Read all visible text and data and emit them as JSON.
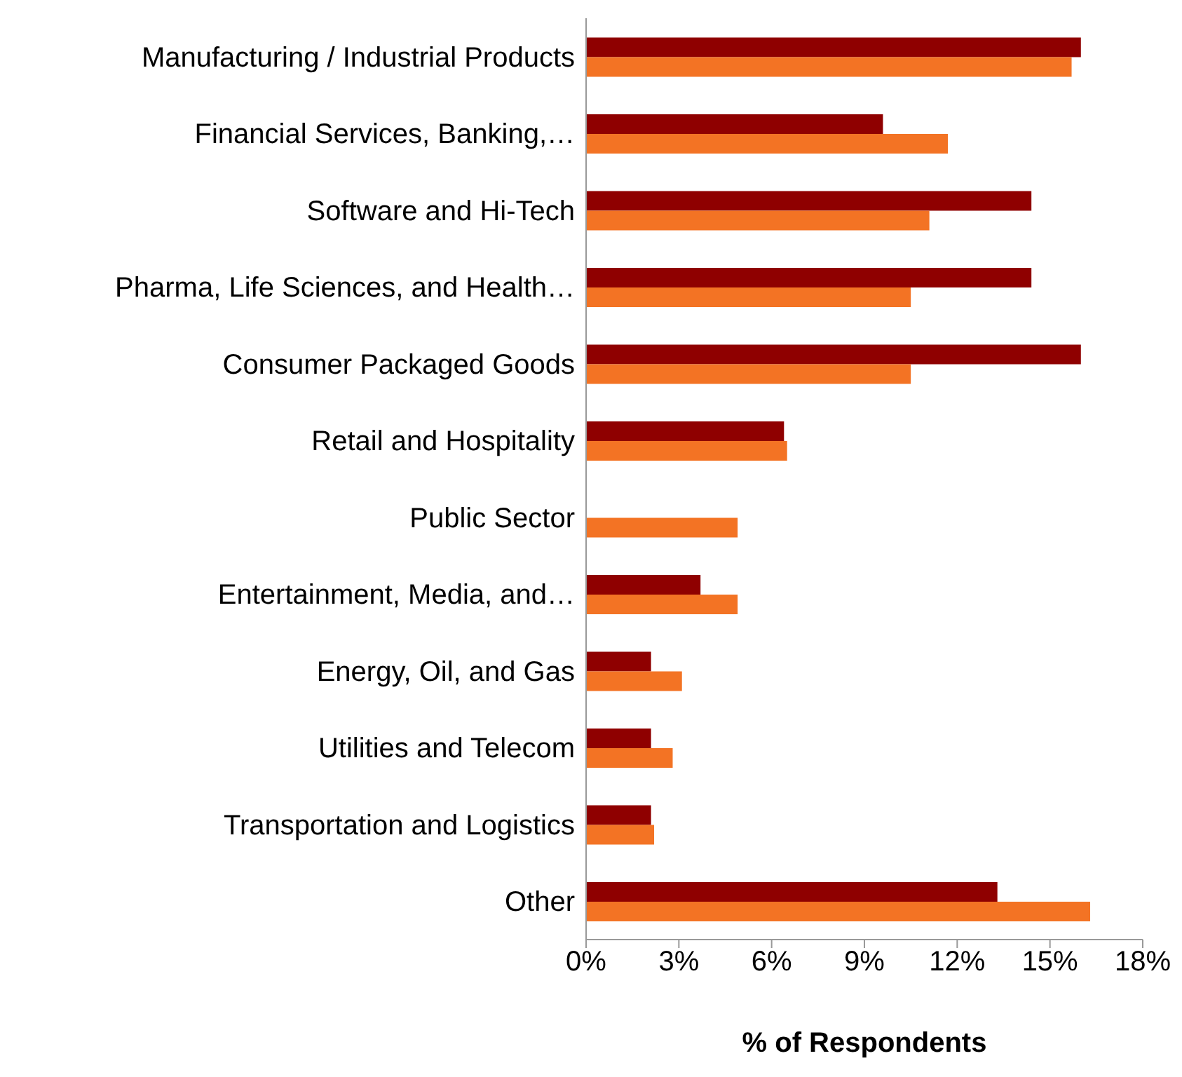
{
  "chart_data": {
    "type": "bar",
    "orientation": "horizontal",
    "xlabel": "% of Respondents",
    "categories": [
      "Manufacturing / Industrial Products",
      "Financial Services, Banking,…",
      "Software and Hi-Tech",
      "Pharma, Life Sciences, and Health…",
      "Consumer Packaged Goods",
      "Retail and Hospitality",
      "Public Sector",
      "Entertainment, Media, and…",
      "Energy, Oil, and Gas",
      "Utilities and Telecom",
      "Transportation and Logistics",
      "Other"
    ],
    "series": [
      {
        "color": "#8f0000",
        "values": [
          16.0,
          9.6,
          14.4,
          14.4,
          16.0,
          6.4,
          0,
          3.7,
          2.1,
          2.1,
          2.1,
          13.3
        ]
      },
      {
        "color": "#f37324",
        "values": [
          15.7,
          11.7,
          11.1,
          10.5,
          10.5,
          6.5,
          4.9,
          4.9,
          3.1,
          2.8,
          2.2,
          16.3
        ]
      }
    ],
    "xlim": [
      0,
      18
    ],
    "xticks": [
      {
        "value": 0,
        "label": "0%"
      },
      {
        "value": 3,
        "label": "3%"
      },
      {
        "value": 6,
        "label": "6%"
      },
      {
        "value": 9,
        "label": "9%"
      },
      {
        "value": 12,
        "label": "12%"
      },
      {
        "value": 15,
        "label": "15%"
      },
      {
        "value": 18,
        "label": "18%"
      }
    ],
    "grid": false,
    "legend": false
  }
}
